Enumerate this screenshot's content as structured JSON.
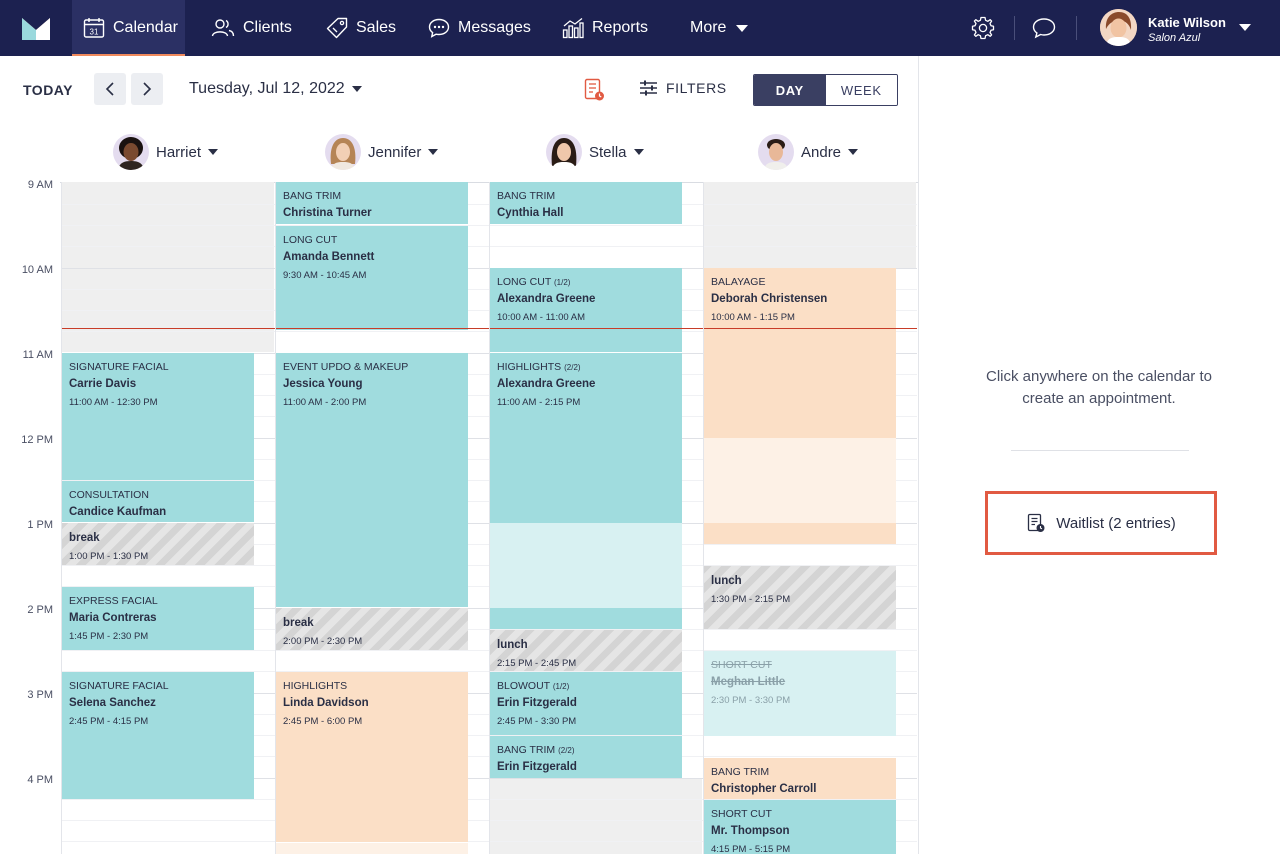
{
  "nav": {
    "items": [
      {
        "label": "Calendar",
        "icon": "calendar-icon",
        "active": true
      },
      {
        "label": "Clients",
        "icon": "users-icon"
      },
      {
        "label": "Sales",
        "icon": "tag-icon"
      },
      {
        "label": "Messages",
        "icon": "chat-bubble-icon"
      },
      {
        "label": "Reports",
        "icon": "bar-chart-icon"
      },
      {
        "label": "More",
        "icon": "chevron-down-icon"
      }
    ],
    "calendar_day": "31",
    "user": {
      "name": "Katie Wilson",
      "salon": "Salon Azul"
    },
    "accent": "#f08a5d",
    "bg": "#1c2150"
  },
  "toolbar": {
    "today": "TODAY",
    "date": "Tuesday, Jul 12, 2022",
    "filters": "FILTERS",
    "view_day": "DAY",
    "view_week": "WEEK"
  },
  "staff": [
    {
      "name": "Harriet"
    },
    {
      "name": "Jennifer"
    },
    {
      "name": "Stella"
    },
    {
      "name": "Andre"
    }
  ],
  "times": [
    "9 AM",
    "10 AM",
    "11 AM",
    "12 PM",
    "1 PM",
    "2 PM",
    "3 PM",
    "4 PM"
  ],
  "appointments": {
    "harriet": [
      {
        "service": "SIGNATURE FACIAL",
        "client": "Carrie Davis",
        "time": "11:00 AM - 12:30 PM"
      },
      {
        "service": "CONSULTATION",
        "client": "Candice Kaufman"
      },
      {
        "client": "break",
        "time": "1:00 PM - 1:30 PM"
      },
      {
        "service": "EXPRESS FACIAL",
        "client": "Maria Contreras",
        "time": "1:45 PM - 2:30 PM"
      },
      {
        "service": "SIGNATURE FACIAL",
        "client": "Selena Sanchez",
        "time": "2:45 PM - 4:15 PM"
      }
    ],
    "jennifer": [
      {
        "service": "BANG TRIM",
        "client": "Christina Turner"
      },
      {
        "service": "LONG CUT",
        "client": "Amanda Bennett",
        "time": "9:30 AM - 10:45 AM"
      },
      {
        "service": "EVENT UPDO & MAKEUP",
        "client": "Jessica Young",
        "time": "11:00 AM - 2:00 PM"
      },
      {
        "client": "break",
        "time": "2:00 PM - 2:30 PM"
      },
      {
        "service": "HIGHLIGHTS",
        "client": "Linda Davidson",
        "time": "2:45 PM - 6:00 PM"
      }
    ],
    "stella": [
      {
        "service": "BANG TRIM",
        "client": "Cynthia Hall"
      },
      {
        "service": "LONG CUT",
        "part": "(1/2)",
        "client": "Alexandra Greene",
        "time": "10:00 AM - 11:00 AM"
      },
      {
        "service": "HIGHLIGHTS",
        "part": "(2/2)",
        "client": "Alexandra Greene",
        "time": "11:00 AM - 2:15 PM"
      },
      {
        "client": "lunch",
        "time": "2:15 PM - 2:45 PM"
      },
      {
        "service": "BLOWOUT",
        "part": "(1/2)",
        "client": "Erin Fitzgerald",
        "time": "2:45 PM - 3:30 PM"
      },
      {
        "service": "BANG TRIM",
        "part": "(2/2)",
        "client": "Erin Fitzgerald"
      }
    ],
    "andre": [
      {
        "service": "BALAYAGE",
        "client": "Deborah Christensen",
        "time": "10:00 AM - 1:15 PM"
      },
      {
        "client": "lunch",
        "time": "1:30 PM - 2:15 PM"
      },
      {
        "service": "SHORT CUT",
        "client": "Meghan Little",
        "time": "2:30 PM - 3:30 PM",
        "cancelled": true
      },
      {
        "service": "BANG TRIM",
        "client": "Christopher Carroll"
      },
      {
        "service": "SHORT CUT",
        "client": "Mr. Thompson",
        "time": "4:15 PM - 5:15 PM"
      }
    ]
  },
  "panel": {
    "hint": "Click anywhere on the calendar to create an appointment.",
    "waitlist": "Waitlist (2 entries)"
  },
  "colors": {
    "appointment": "#a0dcde",
    "color_service": "#fbdfc6",
    "now_line": "#c83c28",
    "waitlist_highlight": "#e15a42"
  }
}
